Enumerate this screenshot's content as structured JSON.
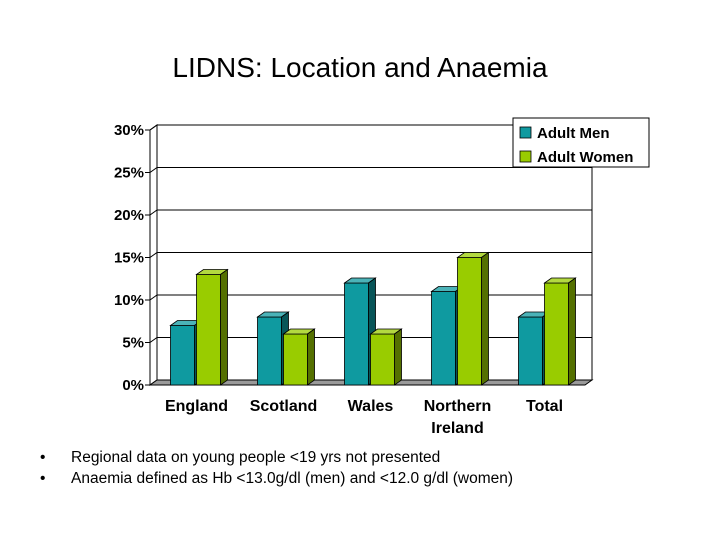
{
  "slide": {
    "title": "LIDNS: Location and Anaemia",
    "bullets": [
      "Regional data on young people <19 yrs not presented",
      "Anaemia defined as Hb <13.0g/dl (men) and <12.0 g/dl (women)"
    ],
    "bullet_symbol": "•"
  },
  "chart_data": {
    "type": "bar",
    "title": "",
    "xlabel": "",
    "ylabel": "",
    "categories": [
      [
        "England"
      ],
      [
        "Scotland"
      ],
      [
        "Wales"
      ],
      [
        "Northern",
        "Ireland"
      ],
      [
        "Total"
      ]
    ],
    "series": [
      {
        "name": "Adult Men",
        "values": [
          7,
          8,
          12,
          11,
          8
        ],
        "color": "#0f9aa0"
      },
      {
        "name": "Adult Women",
        "values": [
          13,
          6,
          6,
          15,
          12
        ],
        "color": "#99cc00"
      }
    ],
    "ylim": [
      0,
      30
    ],
    "yticks": [
      0,
      5,
      10,
      15,
      20,
      25,
      30
    ],
    "ytick_format": "{v}%",
    "grid": true,
    "legend_position": "top-right",
    "style": "3d"
  }
}
